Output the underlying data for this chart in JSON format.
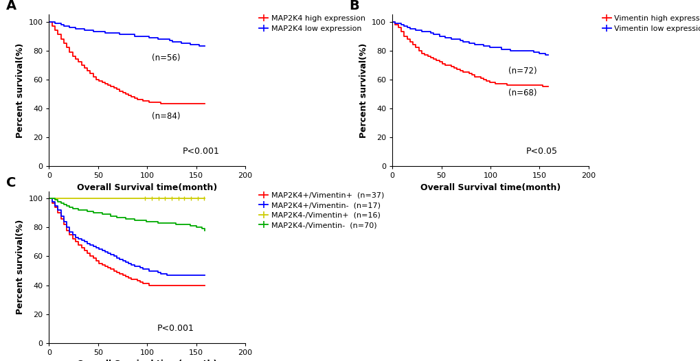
{
  "panel_A": {
    "label": "A",
    "xlabel": "Overall Survival time(month)",
    "ylabel": "Percent survival(%)",
    "xlim": [
      0,
      200
    ],
    "ylim": [
      0,
      105
    ],
    "xticks": [
      0,
      50,
      100,
      150,
      200
    ],
    "yticks": [
      0,
      20,
      40,
      60,
      80,
      100
    ],
    "pvalue": "P<0.001",
    "pvalue_x": 0.68,
    "pvalue_y": 0.08,
    "lines": [
      {
        "label": "MAP2K4 high expression",
        "color": "#FF0000",
        "n_label": "(n=84)",
        "n_x": 105,
        "n_y": 33,
        "x": [
          0,
          3,
          6,
          9,
          12,
          15,
          18,
          21,
          24,
          27,
          30,
          33,
          36,
          39,
          42,
          45,
          48,
          51,
          54,
          57,
          60,
          63,
          66,
          69,
          72,
          75,
          78,
          81,
          84,
          87,
          90,
          93,
          96,
          99,
          102,
          105,
          108,
          111,
          114,
          117,
          120,
          123,
          126,
          129,
          132,
          135,
          138,
          141,
          144,
          147,
          150,
          153,
          156,
          159
        ],
        "y": [
          100,
          97,
          94,
          91,
          88,
          85,
          82,
          79,
          76,
          74,
          72,
          70,
          68,
          66,
          64,
          62,
          60,
          59,
          58,
          57,
          56,
          55,
          54,
          53,
          52,
          51,
          50,
          49,
          48,
          47,
          46,
          46,
          45,
          45,
          44,
          44,
          44,
          44,
          43,
          43,
          43,
          43,
          43,
          43,
          43,
          43,
          43,
          43,
          43,
          43,
          43,
          43,
          43,
          43
        ]
      },
      {
        "label": "MAP2K4 low expression",
        "color": "#0000FF",
        "n_label": "(n=56)",
        "n_x": 105,
        "n_y": 73,
        "x": [
          0,
          3,
          6,
          9,
          12,
          15,
          18,
          21,
          24,
          27,
          30,
          33,
          36,
          39,
          42,
          45,
          48,
          51,
          54,
          57,
          60,
          63,
          66,
          69,
          72,
          75,
          78,
          81,
          84,
          87,
          90,
          93,
          96,
          99,
          102,
          105,
          108,
          111,
          114,
          117,
          120,
          123,
          126,
          129,
          132,
          135,
          138,
          141,
          144,
          147,
          150,
          153,
          156,
          159
        ],
        "y": [
          100,
          100,
          99,
          99,
          98,
          97,
          97,
          96,
          96,
          95,
          95,
          95,
          94,
          94,
          94,
          93,
          93,
          93,
          93,
          92,
          92,
          92,
          92,
          92,
          91,
          91,
          91,
          91,
          91,
          90,
          90,
          90,
          90,
          90,
          89,
          89,
          89,
          88,
          88,
          88,
          88,
          87,
          86,
          86,
          86,
          85,
          85,
          85,
          84,
          84,
          84,
          83,
          83,
          83
        ]
      }
    ]
  },
  "panel_B": {
    "label": "B",
    "xlabel": "Overall Survival time(month)",
    "ylabel": "Percent survival(%)",
    "xlim": [
      0,
      200
    ],
    "ylim": [
      0,
      105
    ],
    "xticks": [
      0,
      50,
      100,
      150,
      200
    ],
    "yticks": [
      0,
      20,
      40,
      60,
      80,
      100
    ],
    "pvalue": "P<0.05",
    "pvalue_x": 0.68,
    "pvalue_y": 0.08,
    "lines": [
      {
        "label": "Vimentin high expression",
        "color": "#FF0000",
        "n_label": "(n=68)",
        "n_x": 118,
        "n_y": 49,
        "x": [
          0,
          3,
          6,
          9,
          12,
          15,
          18,
          21,
          24,
          27,
          30,
          33,
          36,
          39,
          42,
          45,
          48,
          51,
          54,
          57,
          60,
          63,
          66,
          69,
          72,
          75,
          78,
          81,
          84,
          87,
          90,
          93,
          96,
          99,
          102,
          105,
          108,
          111,
          114,
          117,
          120,
          123,
          126,
          129,
          132,
          135,
          138,
          141,
          144,
          147,
          150,
          153,
          156,
          159
        ],
        "y": [
          100,
          98,
          96,
          93,
          90,
          88,
          86,
          84,
          82,
          80,
          78,
          77,
          76,
          75,
          74,
          73,
          72,
          71,
          70,
          70,
          69,
          68,
          67,
          66,
          65,
          65,
          64,
          63,
          62,
          62,
          61,
          60,
          59,
          58,
          58,
          57,
          57,
          57,
          57,
          56,
          56,
          56,
          56,
          56,
          56,
          56,
          56,
          56,
          56,
          56,
          56,
          55,
          55,
          55
        ]
      },
      {
        "label": "Vimentin low expression",
        "color": "#0000FF",
        "n_label": "(n=72)",
        "n_x": 118,
        "n_y": 64,
        "x": [
          0,
          3,
          6,
          9,
          12,
          15,
          18,
          21,
          24,
          27,
          30,
          33,
          36,
          39,
          42,
          45,
          48,
          51,
          54,
          57,
          60,
          63,
          66,
          69,
          72,
          75,
          78,
          81,
          84,
          87,
          90,
          93,
          96,
          99,
          102,
          105,
          108,
          111,
          114,
          117,
          120,
          123,
          126,
          129,
          132,
          135,
          138,
          141,
          144,
          147,
          150,
          153,
          156,
          159
        ],
        "y": [
          100,
          99,
          99,
          98,
          97,
          96,
          95,
          95,
          94,
          94,
          93,
          93,
          93,
          92,
          91,
          91,
          90,
          90,
          89,
          89,
          88,
          88,
          88,
          87,
          86,
          86,
          85,
          85,
          84,
          84,
          84,
          83,
          83,
          82,
          82,
          82,
          82,
          81,
          81,
          81,
          80,
          80,
          80,
          80,
          80,
          80,
          80,
          80,
          79,
          79,
          78,
          78,
          77,
          77
        ]
      }
    ]
  },
  "panel_C": {
    "label": "C",
    "xlabel": "Overall Survival time(month)",
    "ylabel": "Percent survival(%)",
    "xlim": [
      0,
      200
    ],
    "ylim": [
      0,
      105
    ],
    "xticks": [
      0,
      50,
      100,
      150,
      200
    ],
    "yticks": [
      0,
      20,
      40,
      60,
      80,
      100
    ],
    "pvalue": "P<0.001",
    "pvalue_x": 0.55,
    "pvalue_y": 0.08,
    "censor_x_yellow": [
      98,
      105,
      112,
      118,
      125,
      132,
      138,
      145,
      152,
      158
    ],
    "lines": [
      {
        "label": "MAP2K4+/Vimentin+  (n=37)",
        "color": "#FF0000",
        "x": [
          0,
          3,
          6,
          9,
          12,
          15,
          18,
          21,
          24,
          27,
          30,
          33,
          36,
          39,
          42,
          45,
          48,
          51,
          54,
          57,
          60,
          63,
          66,
          69,
          72,
          75,
          78,
          81,
          84,
          87,
          90,
          93,
          96,
          99,
          102,
          105,
          108,
          111,
          114,
          117,
          120,
          123,
          126,
          129,
          132,
          135,
          138,
          141,
          144,
          147,
          150,
          153,
          156,
          159
        ],
        "y": [
          100,
          97,
          94,
          90,
          86,
          82,
          78,
          75,
          72,
          70,
          68,
          66,
          64,
          62,
          60,
          59,
          57,
          55,
          54,
          53,
          52,
          51,
          50,
          49,
          48,
          47,
          46,
          45,
          44,
          44,
          43,
          42,
          41,
          41,
          40,
          40,
          40,
          40,
          40,
          40,
          40,
          40,
          40,
          40,
          40,
          40,
          40,
          40,
          40,
          40,
          40,
          40,
          40,
          40
        ]
      },
      {
        "label": "MAP2K4+/Vimentin-  (n=17)",
        "color": "#0000FF",
        "x": [
          0,
          3,
          6,
          9,
          12,
          15,
          18,
          21,
          24,
          27,
          30,
          33,
          36,
          39,
          42,
          45,
          48,
          51,
          54,
          57,
          60,
          63,
          66,
          69,
          72,
          75,
          78,
          81,
          84,
          87,
          90,
          93,
          96,
          99,
          102,
          105,
          108,
          111,
          114,
          117,
          120,
          123,
          126,
          129,
          132,
          135,
          138,
          141,
          144,
          147,
          150,
          153,
          156,
          159
        ],
        "y": [
          100,
          98,
          95,
          92,
          88,
          84,
          80,
          77,
          75,
          73,
          72,
          71,
          70,
          69,
          68,
          67,
          66,
          65,
          64,
          63,
          62,
          61,
          60,
          59,
          58,
          57,
          56,
          55,
          54,
          53,
          53,
          52,
          51,
          51,
          50,
          50,
          50,
          49,
          48,
          48,
          47,
          47,
          47,
          47,
          47,
          47,
          47,
          47,
          47,
          47,
          47,
          47,
          47,
          47
        ]
      },
      {
        "label": "MAP2K4-/Vimentin+  (n=16)",
        "color": "#CCCC00",
        "x": [
          0,
          3,
          6,
          9,
          12,
          15,
          18,
          21,
          24,
          27,
          30,
          33,
          36,
          39,
          42,
          45,
          48,
          51,
          54,
          57,
          60,
          63,
          66,
          69,
          72,
          75,
          78,
          81,
          84,
          87,
          90,
          93,
          96,
          99,
          102,
          105,
          108,
          111,
          114,
          117,
          120,
          123,
          126,
          129,
          132,
          135,
          138,
          141,
          144,
          147,
          150,
          153,
          156,
          159
        ],
        "y": [
          100,
          100,
          100,
          100,
          100,
          100,
          100,
          100,
          100,
          100,
          100,
          100,
          100,
          100,
          100,
          100,
          100,
          100,
          100,
          100,
          100,
          100,
          100,
          100,
          100,
          100,
          100,
          100,
          100,
          100,
          100,
          100,
          100,
          100,
          100,
          100,
          100,
          100,
          100,
          100,
          100,
          100,
          100,
          100,
          100,
          100,
          100,
          100,
          100,
          100,
          100,
          100,
          100,
          100
        ]
      },
      {
        "label": "MAP2K4-/Vimentin-  (n=70)",
        "color": "#00AA00",
        "x": [
          0,
          3,
          6,
          9,
          12,
          15,
          18,
          21,
          24,
          27,
          30,
          33,
          36,
          39,
          42,
          45,
          48,
          51,
          54,
          57,
          60,
          63,
          66,
          69,
          72,
          75,
          78,
          81,
          84,
          87,
          90,
          93,
          96,
          99,
          102,
          105,
          108,
          111,
          114,
          117,
          120,
          123,
          126,
          129,
          132,
          135,
          138,
          141,
          144,
          147,
          150,
          153,
          156,
          159
        ],
        "y": [
          100,
          100,
          99,
          98,
          97,
          96,
          95,
          94,
          93,
          93,
          92,
          92,
          92,
          91,
          91,
          90,
          90,
          90,
          89,
          89,
          89,
          88,
          88,
          87,
          87,
          87,
          86,
          86,
          86,
          85,
          85,
          85,
          85,
          84,
          84,
          84,
          84,
          83,
          83,
          83,
          83,
          83,
          83,
          82,
          82,
          82,
          82,
          82,
          81,
          81,
          80,
          80,
          79,
          78
        ]
      }
    ]
  },
  "bg_color": "#ffffff",
  "label_fontsize": 14,
  "axis_fontsize": 9,
  "tick_fontsize": 8,
  "legend_fontsize": 8,
  "pvalue_fontsize": 9,
  "annotation_fontsize": 8.5,
  "line_width": 1.3
}
